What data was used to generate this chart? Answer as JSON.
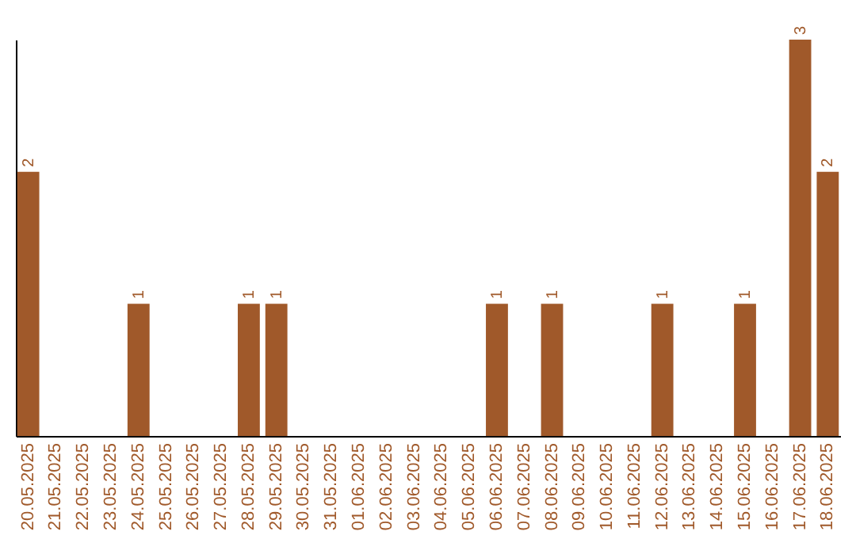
{
  "chart_data": {
    "type": "bar",
    "categories": [
      "20.05.2025",
      "21.05.2025",
      "22.05.2025",
      "23.05.2025",
      "24.05.2025",
      "25.05.2025",
      "26.05.2025",
      "27.05.2025",
      "28.05.2025",
      "29.05.2025",
      "30.05.2025",
      "31.05.2025",
      "01.06.2025",
      "02.06.2025",
      "03.06.2025",
      "04.06.2025",
      "05.06.2025",
      "06.06.2025",
      "07.06.2025",
      "08.06.2025",
      "09.06.2025",
      "10.06.2025",
      "11.06.2025",
      "12.06.2025",
      "13.06.2025",
      "14.06.2025",
      "15.06.2025",
      "16.06.2025",
      "17.06.2025",
      "18.06.2025"
    ],
    "values": [
      2,
      0,
      0,
      0,
      1,
      0,
      0,
      0,
      1,
      1,
      0,
      0,
      0,
      0,
      0,
      0,
      0,
      1,
      0,
      1,
      0,
      0,
      0,
      1,
      0,
      0,
      1,
      0,
      3,
      2
    ],
    "value_labels": [
      "2",
      null,
      null,
      null,
      "1",
      null,
      null,
      null,
      "1",
      "1",
      null,
      null,
      null,
      null,
      null,
      null,
      null,
      "1",
      null,
      "1",
      null,
      null,
      null,
      "1",
      null,
      null,
      "1",
      null,
      "3",
      "2"
    ],
    "color": "#a0592a"
  }
}
